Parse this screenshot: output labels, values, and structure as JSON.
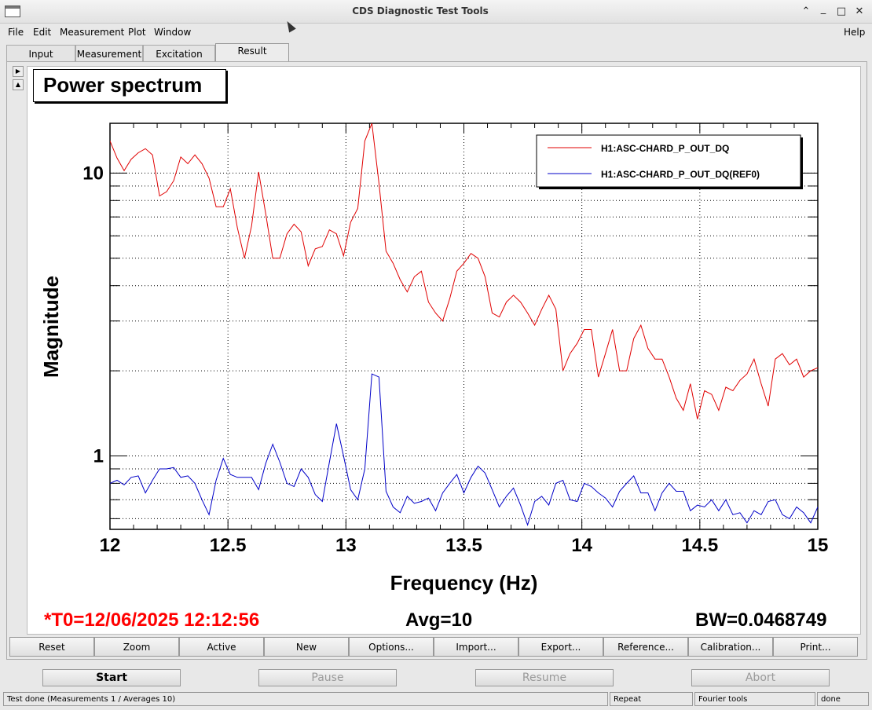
{
  "window": {
    "title": "CDS Diagnostic Test Tools",
    "minimize_icon": "minimize-icon",
    "maximize_icon": "maximize-icon",
    "close_icon": "close-icon"
  },
  "menu": {
    "file": "File",
    "edit": "Edit",
    "measurement": "Measurement",
    "plot": "Plot",
    "window": "Window",
    "help": "Help"
  },
  "tabs": [
    "Input",
    "Measurement",
    "Excitation",
    "Result"
  ],
  "active_tab": "Result",
  "plot_title": "Power spectrum",
  "chart_data": {
    "type": "line",
    "xlabel": "Frequency (Hz)",
    "ylabel": "Magnitude",
    "xlim": [
      12,
      15
    ],
    "ylim": [
      0.55,
      15
    ],
    "yscale": "log",
    "grid": true,
    "legend_position": "top-right",
    "x_ticks": [
      "12",
      "12.5",
      "13",
      "13.5",
      "14",
      "14.5",
      "15"
    ],
    "y_ticks": [
      "1",
      "10"
    ],
    "series": [
      {
        "name": "H1:ASC-CHARD_P_OUT_DQ",
        "color": "#e00000",
        "x": [
          12.0,
          12.03,
          12.06,
          12.09,
          12.12,
          12.15,
          12.18,
          12.21,
          12.24,
          12.27,
          12.3,
          12.33,
          12.36,
          12.39,
          12.42,
          12.45,
          12.48,
          12.51,
          12.54,
          12.57,
          12.6,
          12.63,
          12.66,
          12.69,
          12.72,
          12.75,
          12.78,
          12.81,
          12.84,
          12.87,
          12.9,
          12.93,
          12.96,
          12.99,
          13.02,
          13.05,
          13.08,
          13.11,
          13.14,
          13.17,
          13.2,
          13.23,
          13.26,
          13.29,
          13.32,
          13.35,
          13.38,
          13.41,
          13.44,
          13.47,
          13.5,
          13.53,
          13.56,
          13.59,
          13.62,
          13.65,
          13.68,
          13.71,
          13.74,
          13.77,
          13.8,
          13.83,
          13.86,
          13.89,
          13.92,
          13.95,
          13.98,
          14.01,
          14.04,
          14.07,
          14.1,
          14.13,
          14.16,
          14.19,
          14.22,
          14.25,
          14.28,
          14.31,
          14.34,
          14.37,
          14.4,
          14.43,
          14.46,
          14.49,
          14.52,
          14.55,
          14.58,
          14.61,
          14.64,
          14.67,
          14.7,
          14.73,
          14.76,
          14.79,
          14.82,
          14.85,
          14.88,
          14.91,
          14.94,
          14.97,
          15.0
        ],
        "y": [
          13.0,
          11.3,
          10.2,
          11.2,
          11.8,
          12.2,
          11.6,
          8.3,
          8.6,
          9.4,
          11.4,
          10.8,
          11.6,
          10.8,
          9.6,
          7.6,
          7.6,
          8.8,
          6.4,
          5.0,
          6.5,
          10.1,
          7.2,
          5.0,
          5.0,
          6.1,
          6.6,
          6.2,
          4.7,
          5.4,
          5.5,
          6.3,
          6.1,
          5.1,
          6.7,
          7.5,
          13.0,
          15.0,
          9.2,
          5.3,
          4.8,
          4.2,
          3.8,
          4.3,
          4.5,
          3.5,
          3.2,
          3.0,
          3.6,
          4.5,
          4.8,
          5.2,
          5.0,
          4.3,
          3.2,
          3.1,
          3.5,
          3.7,
          3.5,
          3.2,
          2.9,
          3.3,
          3.7,
          3.3,
          2.0,
          2.3,
          2.5,
          2.8,
          2.8,
          1.9,
          2.3,
          2.8,
          2.0,
          2.0,
          2.6,
          2.9,
          2.4,
          2.2,
          2.2,
          1.9,
          1.6,
          1.45,
          1.8,
          1.35,
          1.7,
          1.65,
          1.45,
          1.75,
          1.7,
          1.85,
          1.95,
          2.2,
          1.8,
          1.5,
          2.2,
          2.3,
          2.1,
          2.2,
          1.9,
          2.0,
          2.05
        ]
      },
      {
        "name": "H1:ASC-CHARD_P_OUT_DQ(REF0)",
        "color": "#0000c8",
        "x": [
          12.0,
          12.03,
          12.06,
          12.09,
          12.12,
          12.15,
          12.18,
          12.21,
          12.24,
          12.27,
          12.3,
          12.33,
          12.36,
          12.39,
          12.42,
          12.45,
          12.48,
          12.51,
          12.54,
          12.57,
          12.6,
          12.63,
          12.66,
          12.69,
          12.72,
          12.75,
          12.78,
          12.81,
          12.84,
          12.87,
          12.9,
          12.93,
          12.96,
          12.99,
          13.02,
          13.05,
          13.08,
          13.11,
          13.14,
          13.17,
          13.2,
          13.23,
          13.26,
          13.29,
          13.32,
          13.35,
          13.38,
          13.41,
          13.44,
          13.47,
          13.5,
          13.53,
          13.56,
          13.59,
          13.62,
          13.65,
          13.68,
          13.71,
          13.74,
          13.77,
          13.8,
          13.83,
          13.86,
          13.89,
          13.92,
          13.95,
          13.98,
          14.01,
          14.04,
          14.07,
          14.1,
          14.13,
          14.16,
          14.19,
          14.22,
          14.25,
          14.28,
          14.31,
          14.34,
          14.37,
          14.4,
          14.43,
          14.46,
          14.49,
          14.52,
          14.55,
          14.58,
          14.61,
          14.64,
          14.67,
          14.7,
          14.73,
          14.76,
          14.79,
          14.82,
          14.85,
          14.88,
          14.91,
          14.94,
          14.97,
          15.0
        ],
        "y": [
          0.8,
          0.82,
          0.79,
          0.84,
          0.85,
          0.74,
          0.82,
          0.9,
          0.9,
          0.91,
          0.84,
          0.85,
          0.8,
          0.7,
          0.62,
          0.82,
          0.98,
          0.86,
          0.84,
          0.84,
          0.84,
          0.76,
          0.94,
          1.1,
          0.95,
          0.8,
          0.78,
          0.9,
          0.84,
          0.73,
          0.69,
          0.95,
          1.3,
          1.0,
          0.76,
          0.7,
          0.9,
          1.95,
          1.9,
          0.75,
          0.66,
          0.63,
          0.72,
          0.68,
          0.69,
          0.71,
          0.64,
          0.74,
          0.8,
          0.86,
          0.74,
          0.84,
          0.92,
          0.87,
          0.76,
          0.66,
          0.72,
          0.77,
          0.67,
          0.57,
          0.69,
          0.72,
          0.67,
          0.8,
          0.82,
          0.7,
          0.69,
          0.8,
          0.78,
          0.74,
          0.71,
          0.66,
          0.75,
          0.8,
          0.85,
          0.74,
          0.74,
          0.64,
          0.74,
          0.8,
          0.75,
          0.75,
          0.64,
          0.67,
          0.66,
          0.7,
          0.64,
          0.7,
          0.62,
          0.63,
          0.58,
          0.64,
          0.62,
          0.69,
          0.7,
          0.62,
          0.6,
          0.66,
          0.63,
          0.58,
          0.66
        ]
      }
    ]
  },
  "info": {
    "t0": "*T0=12/06/2025 12:12:56",
    "avg": "Avg=10",
    "bw": "BW=0.0468749"
  },
  "plot_buttons": [
    "Reset",
    "Zoom",
    "Active",
    "New",
    "Options...",
    "Import...",
    "Export...",
    "Reference...",
    "Calibration...",
    "Print..."
  ],
  "controls": {
    "start": "Start",
    "pause": "Pause",
    "resume": "Resume",
    "abort": "Abort"
  },
  "status": {
    "message": "Test done (Measurements 1 / Averages 10)",
    "mode": "Repeat",
    "tool": "Fourier tools",
    "state": "done"
  }
}
